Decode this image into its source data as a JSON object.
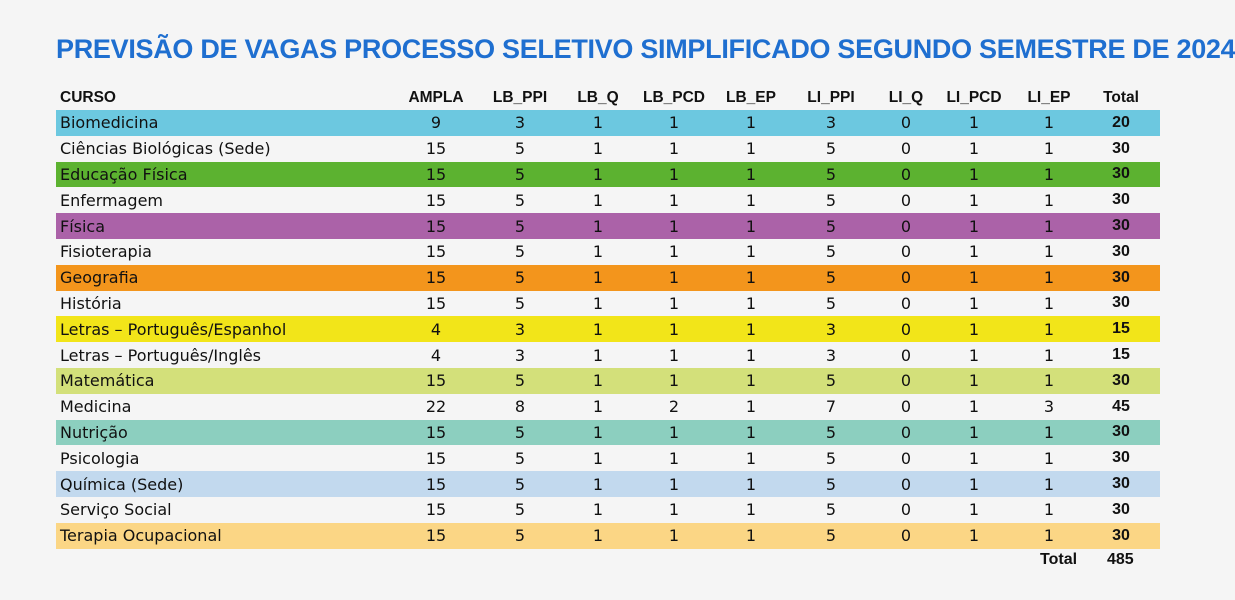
{
  "title": "PREVISÃO DE VAGAS PROCESSO SELETIVO SIMPLIFICADO SEGUNDO SEMESTRE DE 2024",
  "headers": [
    "CURSO",
    "AMPLA",
    "LB_PPI",
    "LB_Q",
    "LB_PCD",
    "LB_EP",
    "LI_PPI",
    "LI_Q",
    "LI_PCD",
    "LI_EP",
    "Total"
  ],
  "rows": [
    {
      "curso": "Biomedicina",
      "vals": [
        "9",
        "3",
        "1",
        "1",
        "1",
        "3",
        "0",
        "1",
        "1",
        "20"
      ],
      "color": "#6cc8e0"
    },
    {
      "curso": "Ciências Biológicas (Sede)",
      "vals": [
        "15",
        "5",
        "1",
        "1",
        "1",
        "5",
        "0",
        "1",
        "1",
        "30"
      ],
      "color": ""
    },
    {
      "curso": "Educação Física",
      "vals": [
        "15",
        "5",
        "1",
        "1",
        "1",
        "5",
        "0",
        "1",
        "1",
        "30"
      ],
      "color": "#5cb230"
    },
    {
      "curso": "Enfermagem",
      "vals": [
        "15",
        "5",
        "1",
        "1",
        "1",
        "5",
        "0",
        "1",
        "1",
        "30"
      ],
      "color": ""
    },
    {
      "curso": "Física",
      "vals": [
        "15",
        "5",
        "1",
        "1",
        "1",
        "5",
        "0",
        "1",
        "1",
        "30"
      ],
      "color": "#ab62a8"
    },
    {
      "curso": "Fisioterapia",
      "vals": [
        "15",
        "5",
        "1",
        "1",
        "1",
        "5",
        "0",
        "1",
        "1",
        "30"
      ],
      "color": ""
    },
    {
      "curso": "Geografia",
      "vals": [
        "15",
        "5",
        "1",
        "1",
        "1",
        "5",
        "0",
        "1",
        "1",
        "30"
      ],
      "color": "#f3951c"
    },
    {
      "curso": "História",
      "vals": [
        "15",
        "5",
        "1",
        "1",
        "1",
        "5",
        "0",
        "1",
        "1",
        "30"
      ],
      "color": ""
    },
    {
      "curso": "Letras – Português/Espanhol",
      "vals": [
        "4",
        "3",
        "1",
        "1",
        "1",
        "3",
        "0",
        "1",
        "1",
        "15"
      ],
      "color": "#f2e519"
    },
    {
      "curso": "Letras – Português/Inglês",
      "vals": [
        "4",
        "3",
        "1",
        "1",
        "1",
        "3",
        "0",
        "1",
        "1",
        "15"
      ],
      "color": ""
    },
    {
      "curso": "Matemática",
      "vals": [
        "15",
        "5",
        "1",
        "1",
        "1",
        "5",
        "0",
        "1",
        "1",
        "30"
      ],
      "color": "#d3e07a"
    },
    {
      "curso": "Medicina",
      "vals": [
        "22",
        "8",
        "1",
        "2",
        "1",
        "7",
        "0",
        "1",
        "3",
        "45"
      ],
      "color": ""
    },
    {
      "curso": "Nutrição",
      "vals": [
        "15",
        "5",
        "1",
        "1",
        "1",
        "5",
        "0",
        "1",
        "1",
        "30"
      ],
      "color": "#8ccfbf"
    },
    {
      "curso": "Psicologia",
      "vals": [
        "15",
        "5",
        "1",
        "1",
        "1",
        "5",
        "0",
        "1",
        "1",
        "30"
      ],
      "color": ""
    },
    {
      "curso": "Química (Sede)",
      "vals": [
        "15",
        "5",
        "1",
        "1",
        "1",
        "5",
        "0",
        "1",
        "1",
        "30"
      ],
      "color": "#c2d9ee"
    },
    {
      "curso": "Serviço Social",
      "vals": [
        "15",
        "5",
        "1",
        "1",
        "1",
        "5",
        "0",
        "1",
        "1",
        "30"
      ],
      "color": ""
    },
    {
      "curso": "Terapia Ocupacional",
      "vals": [
        "15",
        "5",
        "1",
        "1",
        "1",
        "5",
        "0",
        "1",
        "1",
        "30"
      ],
      "color": "#fbd685"
    }
  ],
  "footer": {
    "label": "Total",
    "value": "485"
  }
}
